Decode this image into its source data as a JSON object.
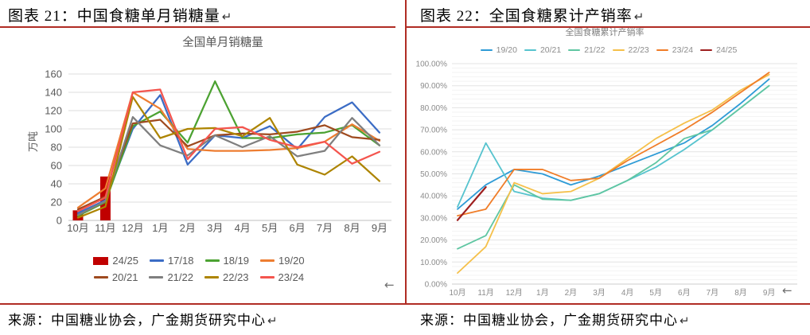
{
  "page": {
    "left_title": "图表 21：中国食糖单月销糖量",
    "right_title": "图表 22：全国食糖累计产销率",
    "return_mark": "↵",
    "back_arrow": "←",
    "left_source": "来源：中国糖业协会，广金期货研究中心",
    "right_source": "来源：中国糖业协会，广金期货研究中心",
    "border_color": "#b02c24"
  },
  "chart_data": [
    {
      "type": "bar+line",
      "title": "全国单月销糖量",
      "xlabel": "",
      "ylabel": "万吨",
      "ylim": [
        0,
        160
      ],
      "yticks": [
        "0",
        "20",
        "40",
        "60",
        "80",
        "100",
        "120",
        "140",
        "160"
      ],
      "grid": "horizontal",
      "legend_position": "bottom",
      "categories": [
        "10月",
        "11月",
        "12月",
        "1月",
        "2月",
        "3月",
        "4月",
        "5月",
        "6月",
        "7月",
        "8月",
        "9月"
      ],
      "bar_series": {
        "name": "24/25",
        "color": "#c00000",
        "values": [
          11,
          48
        ]
      },
      "series": [
        {
          "name": "17/18",
          "color": "#3b6cc5",
          "values": [
            8,
            22,
            100,
            137,
            61,
            93,
            90,
            103,
            78,
            113,
            129,
            96
          ]
        },
        {
          "name": "18/19",
          "color": "#4ca232",
          "values": [
            5,
            20,
            103,
            119,
            85,
            152,
            90,
            90,
            94,
            96,
            104,
            82
          ]
        },
        {
          "name": "19/20",
          "color": "#ed7d31",
          "values": [
            14,
            35,
            140,
            122,
            78,
            76,
            76,
            77,
            79,
            86,
            105,
            87
          ]
        },
        {
          "name": "20/21",
          "color": "#9e4a1f",
          "values": [
            12,
            26,
            106,
            110,
            81,
            93,
            95,
            94,
            97,
            104,
            91,
            88
          ]
        },
        {
          "name": "21/22",
          "color": "#7f7f7f",
          "values": [
            6,
            21,
            113,
            82,
            71,
            93,
            80,
            92,
            70,
            76,
            112,
            82
          ]
        },
        {
          "name": "22/23",
          "color": "#ad8400",
          "values": [
            3,
            15,
            135,
            90,
            100,
            101,
            92,
            112,
            61,
            50,
            70,
            43
          ]
        },
        {
          "name": "23/24",
          "color": "#f4554e",
          "values": [
            10,
            25,
            140,
            143,
            67,
            100,
            102,
            88,
            80,
            86,
            62,
            75
          ]
        }
      ]
    },
    {
      "type": "line",
      "title": "全国食糖累计产销率",
      "xlabel": "",
      "ylabel": "",
      "ylim": [
        0,
        100
      ],
      "yticks": [
        "0.00%",
        "10.00%",
        "20.00%",
        "30.00%",
        "40.00%",
        "50.00%",
        "60.00%",
        "70.00%",
        "80.00%",
        "90.00%",
        "100.00%"
      ],
      "grid": "horizontal-minor",
      "legend_position": "top",
      "categories": [
        "10月",
        "11月",
        "12月",
        "1月",
        "2月",
        "3月",
        "4月",
        "5月",
        "6月",
        "7月",
        "8月",
        "9月"
      ],
      "series": [
        {
          "name": "19/20",
          "color": "#2e9bd6",
          "values": [
            34,
            45,
            52,
            50,
            45,
            49,
            54,
            59,
            64,
            72,
            82,
            93
          ]
        },
        {
          "name": "20/21",
          "color": "#56c3ce",
          "values": [
            35,
            64,
            42,
            39,
            38,
            41,
            47,
            53,
            61,
            70,
            80,
            90
          ]
        },
        {
          "name": "21/22",
          "color": "#5fc6a2",
          "values": [
            16,
            22,
            45,
            38.5,
            38,
            41,
            47,
            55,
            66,
            70,
            80,
            90
          ]
        },
        {
          "name": "22/23",
          "color": "#f5c04a",
          "values": [
            5,
            17,
            46,
            41,
            42,
            48,
            57,
            66,
            73,
            79,
            88,
            95
          ]
        },
        {
          "name": "23/24",
          "color": "#f07d28",
          "values": [
            31,
            34,
            52,
            52,
            47,
            48,
            56,
            63,
            70,
            78,
            87,
            96
          ]
        },
        {
          "name": "24/25",
          "color": "#9e1f1f",
          "values": [
            29,
            44
          ]
        }
      ]
    }
  ]
}
